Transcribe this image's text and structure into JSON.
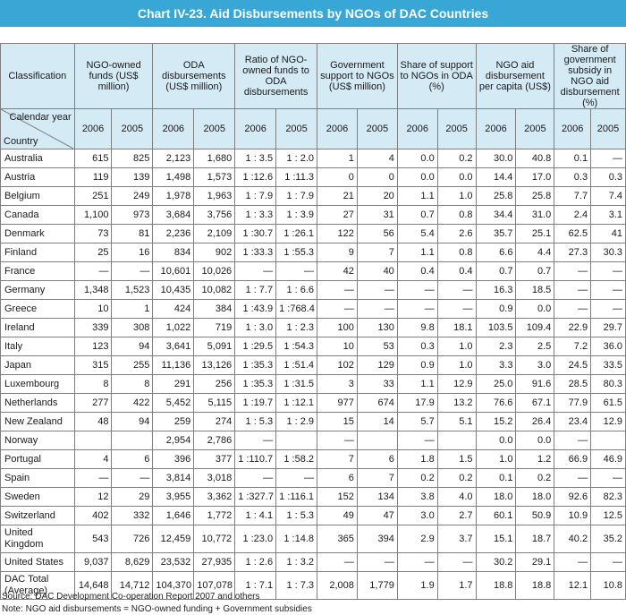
{
  "title": "Chart IV-23. Aid Disbursements by NGOs of DAC Countries",
  "colors": {
    "title_bg": "#39a7d6",
    "header_bg": "#d4eaf5",
    "border": "#7f7f7f"
  },
  "header": {
    "classification": "Classification",
    "groups": [
      "NGO-owned funds (US$ million)",
      "ODA disbursements (US$ million)",
      "Ratio of NGO-owned funds to ODA disbursements",
      "Government support to NGOs (US$ million)",
      "Share of support to NGOs in ODA (%)",
      "NGO aid disbursement per capita (US$)",
      "Share of government subsidy in NGO aid disbursement (%)"
    ],
    "corner_top": "Calendar year",
    "corner_bottom": "Country",
    "years": [
      "2006",
      "2005"
    ]
  },
  "rows": [
    [
      "Australia",
      "615",
      "825",
      "2,123",
      "1,680",
      "1 : 3.5",
      "1 : 2.0",
      "1",
      "4",
      "0.0",
      "0.2",
      "30.0",
      "40.8",
      "0.1",
      "—"
    ],
    [
      "Austria",
      "119",
      "139",
      "1,498",
      "1,573",
      "1 :12.6",
      "1 :11.3",
      "0",
      "0",
      "0.0",
      "0.0",
      "14.4",
      "17.0",
      "0.3",
      "0.3"
    ],
    [
      "Belgium",
      "251",
      "249",
      "1,978",
      "1,963",
      "1 : 7.9",
      "1 : 7.9",
      "21",
      "20",
      "1.1",
      "1.0",
      "25.8",
      "25.8",
      "7.7",
      "7.4"
    ],
    [
      "Canada",
      "1,100",
      "973",
      "3,684",
      "3,756",
      "1 : 3.3",
      "1 : 3.9",
      "27",
      "31",
      "0.7",
      "0.8",
      "34.4",
      "31.0",
      "2.4",
      "3.1"
    ],
    [
      "Denmark",
      "73",
      "81",
      "2,236",
      "2,109",
      "1 :30.7",
      "1 :26.1",
      "122",
      "56",
      "5.4",
      "2.6",
      "35.7",
      "25.1",
      "62.5",
      "41"
    ],
    [
      "Finland",
      "25",
      "16",
      "834",
      "902",
      "1 :33.3",
      "1 :55.3",
      "9",
      "7",
      "1.1",
      "0.8",
      "6.6",
      "4.4",
      "27.3",
      "30.3"
    ],
    [
      "France",
      "—",
      "—",
      "10,601",
      "10,026",
      "—",
      "—",
      "42",
      "40",
      "0.4",
      "0.4",
      "0.7",
      "0.7",
      "—",
      "—"
    ],
    [
      "Germany",
      "1,348",
      "1,523",
      "10,435",
      "10,082",
      "1 : 7.7",
      "1 : 6.6",
      "—",
      "—",
      "—",
      "—",
      "16.3",
      "18.5",
      "—",
      "—"
    ],
    [
      "Greece",
      "10",
      "1",
      "424",
      "384",
      "1 :43.9",
      "1 :768.4",
      "—",
      "—",
      "—",
      "—",
      "0.9",
      "0.0",
      "—",
      "—"
    ],
    [
      "Ireland",
      "339",
      "308",
      "1,022",
      "719",
      "1 : 3.0",
      "1 : 2.3",
      "100",
      "130",
      "9.8",
      "18.1",
      "103.5",
      "109.4",
      "22.9",
      "29.7"
    ],
    [
      "Italy",
      "123",
      "94",
      "3,641",
      "5,091",
      "1 :29.5",
      "1 :54.3",
      "10",
      "53",
      "0.3",
      "1.0",
      "2.3",
      "2.5",
      "7.2",
      "36.0"
    ],
    [
      "Japan",
      "315",
      "255",
      "11,136",
      "13,126",
      "1 :35.3",
      "1 :51.4",
      "102",
      "129",
      "0.9",
      "1.0",
      "3.3",
      "3.0",
      "24.5",
      "33.5"
    ],
    [
      "Luxembourg",
      "8",
      "8",
      "291",
      "256",
      "1 :35.3",
      "1 :31.5",
      "3",
      "33",
      "1.1",
      "12.9",
      "25.0",
      "91.6",
      "28.5",
      "80.3"
    ],
    [
      "Netherlands",
      "277",
      "422",
      "5,452",
      "5,115",
      "1 :19.7",
      "1 :12.1",
      "977",
      "674",
      "17.9",
      "13.2",
      "76.6",
      "67.1",
      "77.9",
      "61.5"
    ],
    [
      "New Zealand",
      "48",
      "94",
      "259",
      "274",
      "1 : 5.3",
      "1 : 2.9",
      "15",
      "14",
      "5.7",
      "5.1",
      "15.2",
      "26.4",
      "23.4",
      "12.9"
    ],
    [
      "Norway",
      "",
      "",
      "2,954",
      "2,786",
      "—",
      "",
      "—",
      "",
      "—",
      "",
      "0.0",
      "0.0",
      "—",
      ""
    ],
    [
      "Portugal",
      "4",
      "6",
      "396",
      "377",
      "1 :110.7",
      "1 :58.2",
      "7",
      "6",
      "1.8",
      "1.5",
      "1.0",
      "1.2",
      "66.9",
      "46.9"
    ],
    [
      "Spain",
      "—",
      "—",
      "3,814",
      "3,018",
      "—",
      "—",
      "6",
      "7",
      "0.2",
      "0.2",
      "0.1",
      "0.2",
      "—",
      "—"
    ],
    [
      "Sweden",
      "12",
      "29",
      "3,955",
      "3,362",
      "1 :327.7",
      "1 :116.1",
      "152",
      "134",
      "3.8",
      "4.0",
      "18.0",
      "18.0",
      "92.6",
      "82.3"
    ],
    [
      "Switzerland",
      "402",
      "332",
      "1,646",
      "1,772",
      "1 : 4.1",
      "1 : 5.3",
      "49",
      "47",
      "3.0",
      "2.7",
      "60.1",
      "50.9",
      "10.9",
      "12.5"
    ],
    [
      "United Kingdom",
      "543",
      "726",
      "12,459",
      "10,772",
      "1 :23.0",
      "1 :14.8",
      "365",
      "394",
      "2.9",
      "3.7",
      "15.1",
      "18.7",
      "40.2",
      "35.2"
    ],
    [
      "United States",
      "9,037",
      "8,629",
      "23,532",
      "27,935",
      "1 : 2.6",
      "1 : 3.2",
      "—",
      "—",
      "—",
      "—",
      "30.2",
      "29.1",
      "—",
      "—"
    ],
    [
      "DAC Total (Average)",
      "14,648",
      "14,712",
      "104,370",
      "107,078",
      "1 : 7.1",
      "1 : 7.3",
      "2,008",
      "1,779",
      "1.9",
      "1.7",
      "18.8",
      "18.8",
      "12.1",
      "10.8"
    ]
  ],
  "footer": {
    "source": "Source: DAC Development Co-operation Report 2007 and others",
    "note": "Note: NGO aid disbursements = NGO-owned funding + Government subsidies"
  }
}
